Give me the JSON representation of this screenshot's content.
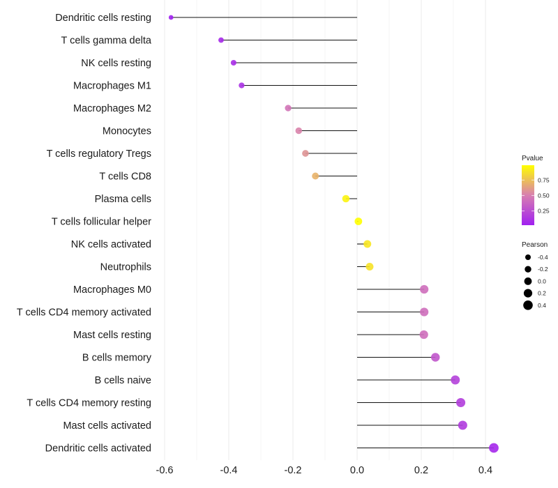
{
  "chart_data": {
    "type": "lollipop",
    "title": "",
    "xlabel": "",
    "ylabel": "",
    "xlim": [
      -0.62,
      0.45
    ],
    "x_ticks": [
      -0.6,
      -0.4,
      -0.2,
      0.0,
      0.2,
      0.4
    ],
    "x_tick_labels": [
      "-0.6",
      "-0.4",
      "-0.2",
      "0.0",
      "0.2",
      "0.4"
    ],
    "grid": true,
    "baseline": 0.0,
    "categories": [
      "Dendritic cells resting",
      "T cells gamma delta",
      "NK cells resting",
      "Macrophages M1",
      "Macrophages M2",
      "Monocytes",
      "T cells regulatory  Tregs ",
      "T cells CD8",
      "Plasma cells",
      "T cells follicular helper",
      "NK cells activated",
      "Neutrophils",
      "Macrophages M0",
      "T cells CD4 memory activated",
      "Mast cells resting",
      "B cells memory",
      "B cells naive",
      "T cells CD4 memory resting",
      "Mast cells activated",
      "Dendritic cells activated"
    ],
    "series": [
      {
        "name": "Pearson",
        "values": [
          -0.58,
          -0.424,
          -0.385,
          -0.36,
          -0.215,
          -0.182,
          -0.161,
          -0.13,
          -0.035,
          0.004,
          0.032,
          0.039,
          0.209,
          0.209,
          0.208,
          0.244,
          0.306,
          0.323,
          0.329,
          0.426
        ]
      },
      {
        "name": "Pvalue",
        "values": [
          0.02,
          0.07,
          0.09,
          0.11,
          0.45,
          0.52,
          0.58,
          0.7,
          0.95,
          0.99,
          0.9,
          0.88,
          0.42,
          0.42,
          0.42,
          0.3,
          0.19,
          0.17,
          0.16,
          0.06
        ]
      }
    ],
    "legends": [
      {
        "title": "Pvalue",
        "type": "colorbar",
        "placement": "right",
        "range": [
          0.02,
          0.99
        ],
        "ticks": [
          0.25,
          0.5,
          0.75
        ],
        "tick_labels": [
          "0.25",
          "0.50",
          "0.75"
        ],
        "colors": [
          "#A020F0",
          "#D87FB0",
          "#FFFF00"
        ]
      },
      {
        "title": "Pearson",
        "type": "size",
        "placement": "right",
        "values": [
          -0.4,
          -0.2,
          0.0,
          0.2,
          0.4
        ],
        "labels": [
          "-0.4",
          "-0.2",
          "0.0",
          "0.2",
          "0.4"
        ]
      }
    ]
  }
}
